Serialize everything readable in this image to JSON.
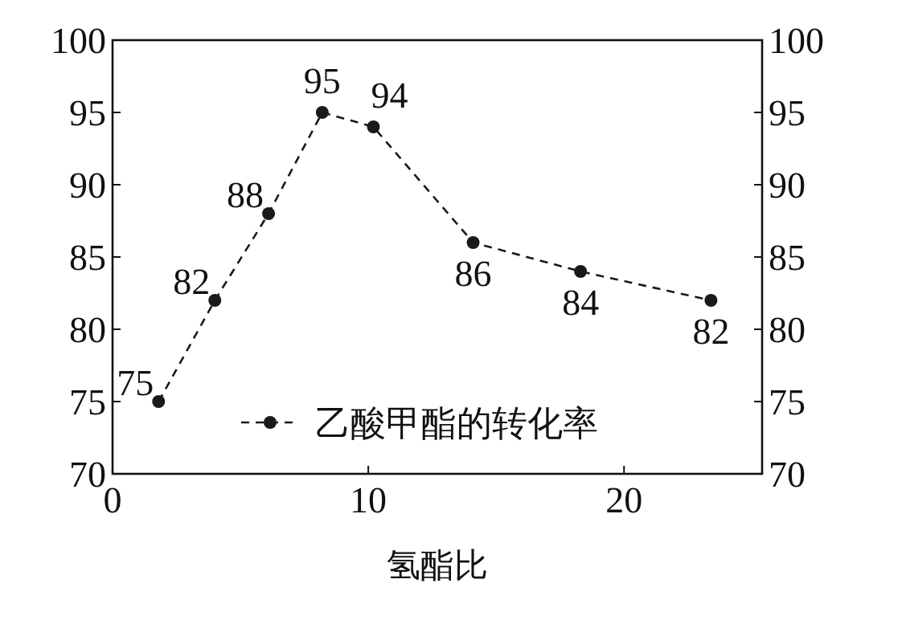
{
  "chart_data": {
    "type": "line",
    "xlabel": "氢酯比",
    "x": [
      1.8,
      4.0,
      6.1,
      8.2,
      10.2,
      14.1,
      18.3,
      23.4
    ],
    "series": [
      {
        "name": "乙酸甲酯的转化率",
        "color": "#1a1a1a",
        "values": [
          75,
          82,
          88,
          95,
          94,
          86,
          84,
          82
        ]
      }
    ],
    "data_labels": true,
    "marker": "circle",
    "line_style": "dashed",
    "legend": "bottom right",
    "grid": false,
    "xlim": [
      0,
      25.4
    ],
    "xticks": [
      0,
      10,
      20
    ],
    "ylim": [
      70,
      100
    ],
    "yticks": [
      70,
      75,
      80,
      85,
      90,
      95,
      100
    ],
    "y2lim": [
      70,
      100
    ],
    "y2ticks": [
      70,
      75,
      80,
      85,
      90,
      95,
      100
    ]
  }
}
